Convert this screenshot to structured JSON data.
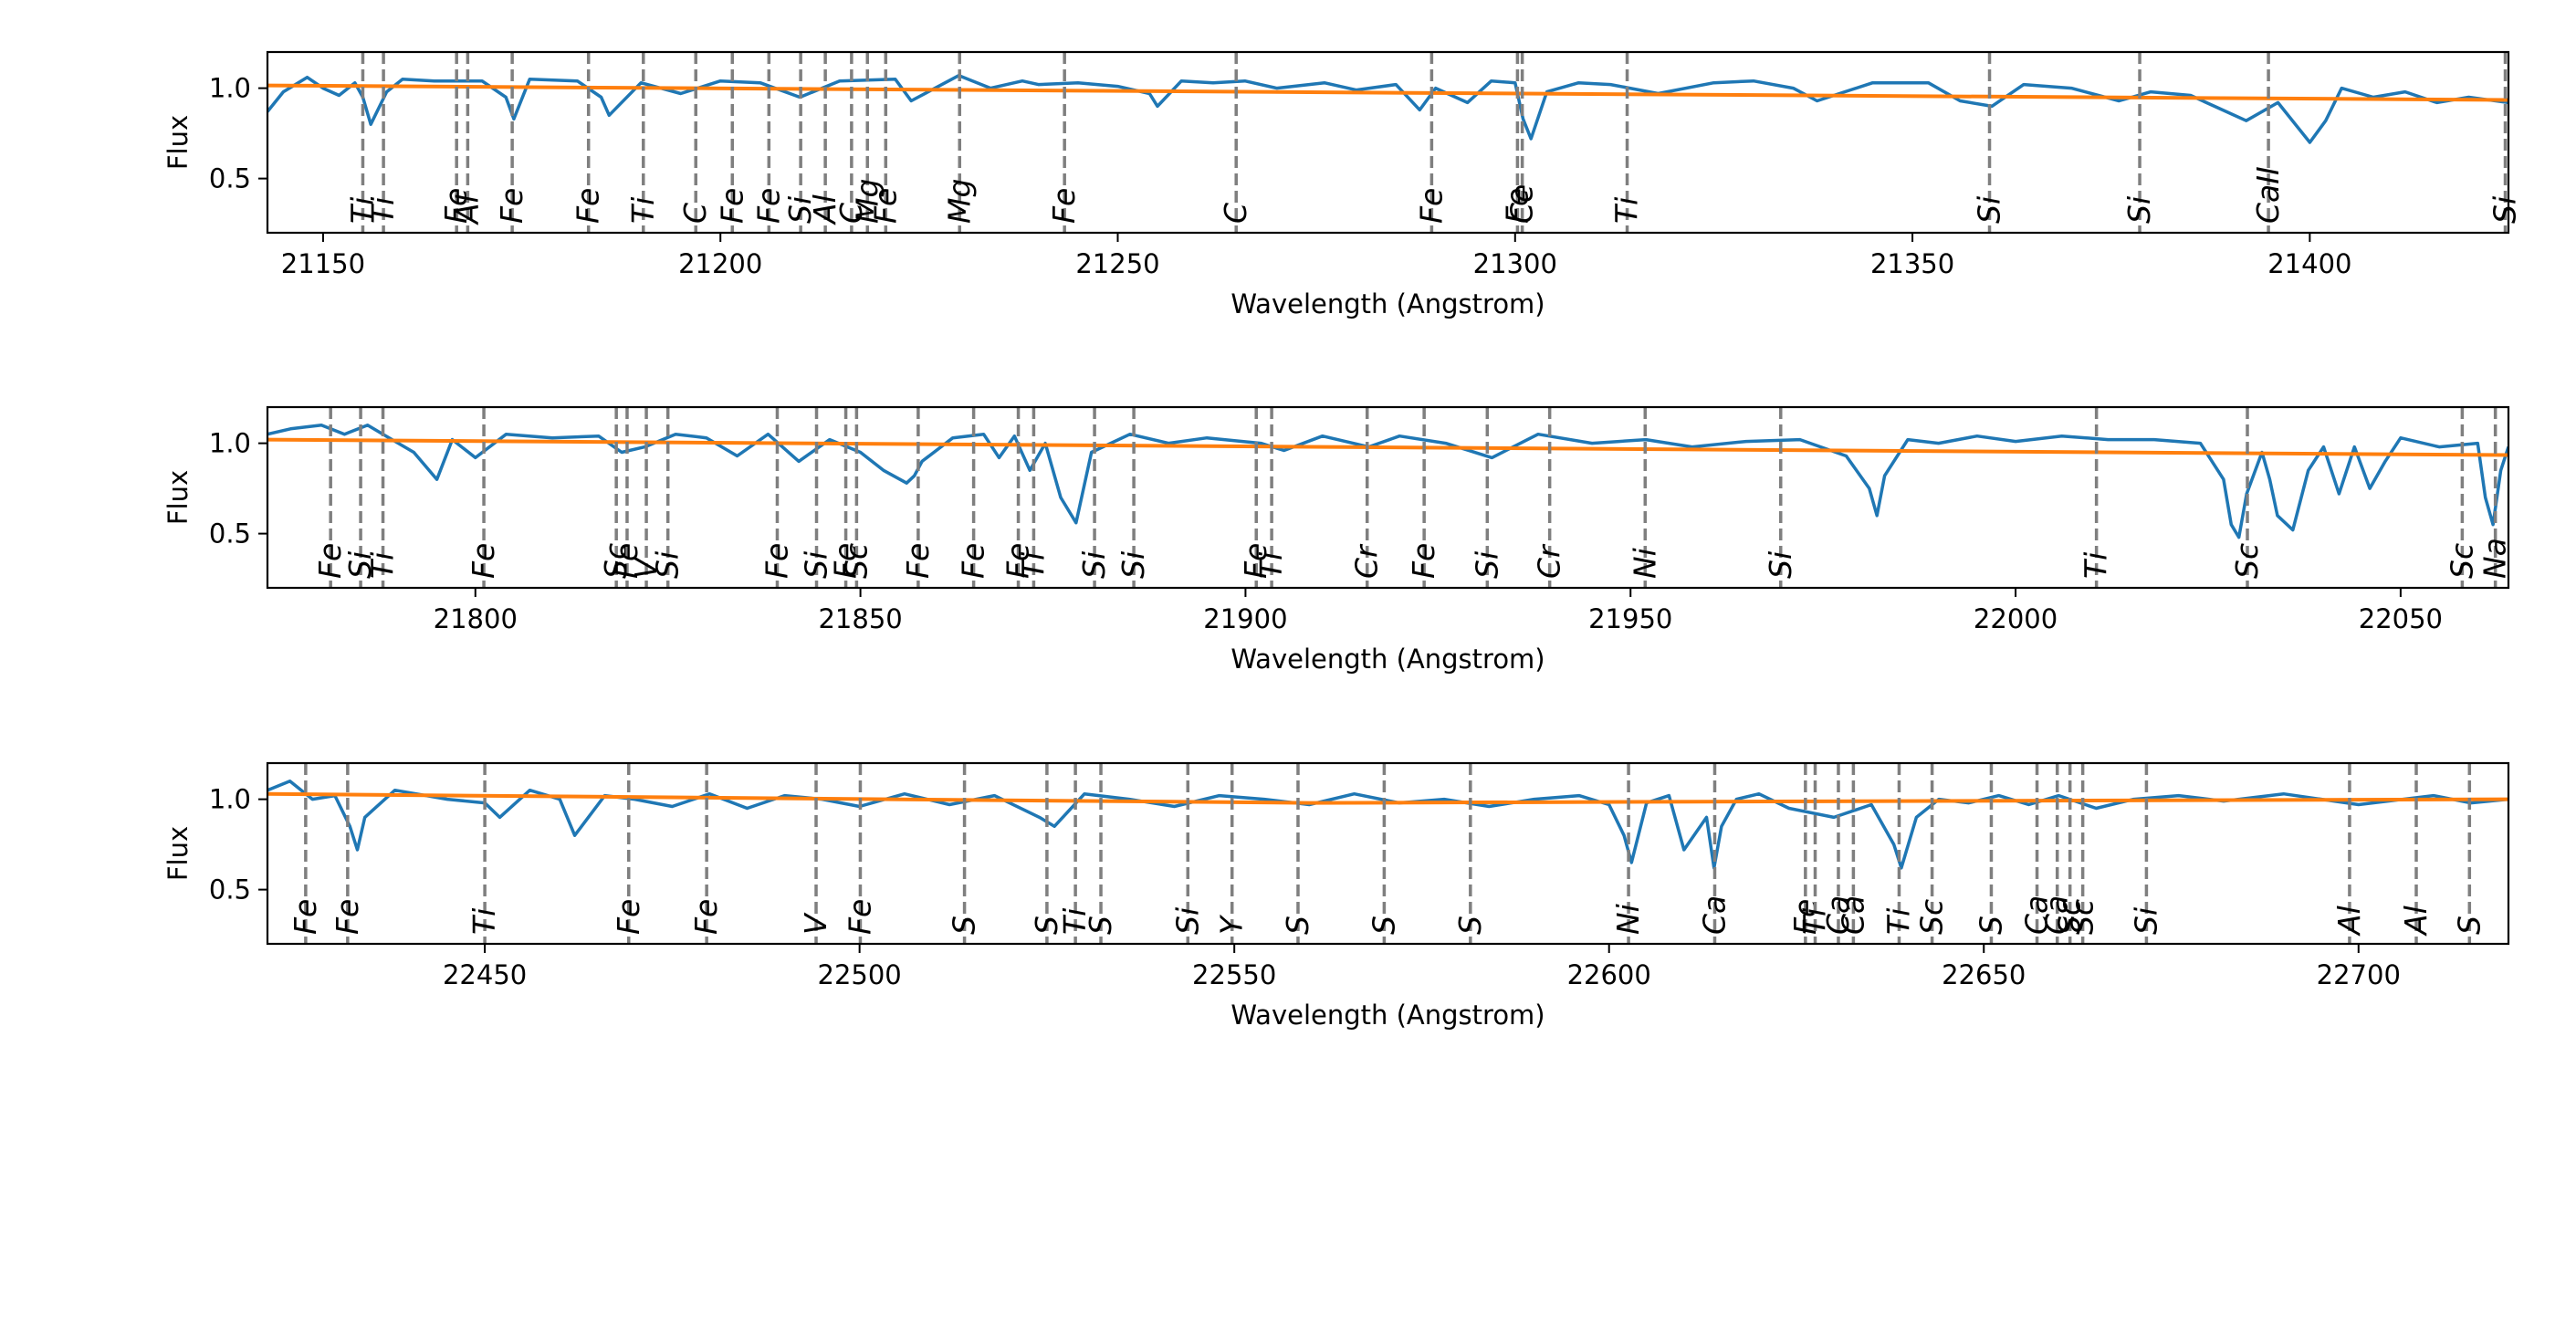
{
  "colors": {
    "spectrum": "#1f77b4",
    "continuum": "#ff7f0e",
    "line_marker": "#7f7f7f",
    "axes": "#000000"
  },
  "chart_data": [
    {
      "type": "line",
      "xlabel": "Wavelength (Angstrom)",
      "ylabel": "Flux",
      "xlim": [
        21143,
        21425
      ],
      "ylim": [
        0.2,
        1.2
      ],
      "xticks": [
        21150,
        21200,
        21250,
        21300,
        21350,
        21400
      ],
      "yticks": [
        0.5,
        1.0
      ],
      "series": [
        {
          "role": "spectrum",
          "x": [
            21143,
            21145,
            21148,
            21150,
            21152,
            21154,
            21155,
            21156,
            21158,
            21160,
            21164,
            21170,
            21173,
            21174,
            21176,
            21182,
            21185,
            21186,
            21190,
            21195,
            21200,
            21205,
            21210,
            21215,
            21222,
            21224,
            21230,
            21234,
            21238,
            21240,
            21245,
            21250,
            21254,
            21255,
            21258,
            21262,
            21266,
            21270,
            21276,
            21280,
            21285,
            21288,
            21290,
            21294,
            21297,
            21300,
            21301,
            21302,
            21304,
            21308,
            21312,
            21318,
            21325,
            21330,
            21335,
            21338,
            21345,
            21352,
            21356,
            21360,
            21364,
            21370,
            21376,
            21380,
            21385,
            21388,
            21392,
            21396,
            21400,
            21402,
            21404,
            21408,
            21412,
            21416,
            21420,
            21425
          ],
          "y": [
            0.87,
            0.98,
            1.06,
            1.0,
            0.96,
            1.03,
            0.95,
            0.8,
            0.98,
            1.05,
            1.04,
            1.04,
            0.95,
            0.83,
            1.05,
            1.04,
            0.95,
            0.85,
            1.03,
            0.97,
            1.04,
            1.03,
            0.95,
            1.04,
            1.05,
            0.93,
            1.07,
            1.0,
            1.04,
            1.02,
            1.03,
            1.01,
            0.97,
            0.9,
            1.04,
            1.03,
            1.04,
            1.0,
            1.03,
            0.99,
            1.02,
            0.88,
            1.0,
            0.92,
            1.04,
            1.03,
            0.83,
            0.72,
            0.98,
            1.03,
            1.02,
            0.97,
            1.03,
            1.04,
            1.0,
            0.93,
            1.03,
            1.03,
            0.93,
            0.9,
            1.02,
            1.0,
            0.93,
            0.98,
            0.96,
            0.9,
            0.82,
            0.92,
            0.7,
            0.82,
            1.0,
            0.95,
            0.98,
            0.92,
            0.95,
            0.92
          ]
        },
        {
          "role": "continuum",
          "x": [
            21143,
            21425
          ],
          "y": [
            1.015,
            0.935
          ]
        }
      ],
      "line_markers": [
        {
          "x": 21155.0,
          "label": "Ti"
        },
        {
          "x": 21157.6,
          "label": "Ti"
        },
        {
          "x": 21166.8,
          "label": "Fe"
        },
        {
          "x": 21168.2,
          "label": "Al"
        },
        {
          "x": 21173.8,
          "label": "Fe"
        },
        {
          "x": 21183.4,
          "label": "Fe"
        },
        {
          "x": 21190.3,
          "label": "Ti"
        },
        {
          "x": 21196.9,
          "label": "C"
        },
        {
          "x": 21201.5,
          "label": "Fe"
        },
        {
          "x": 21206.1,
          "label": "Fe"
        },
        {
          "x": 21210.1,
          "label": "Si"
        },
        {
          "x": 21213.2,
          "label": "Al"
        },
        {
          "x": 21216.5,
          "label": "C"
        },
        {
          "x": 21218.5,
          "label": "Mg"
        },
        {
          "x": 21220.8,
          "label": "Fe"
        },
        {
          "x": 21230.1,
          "label": "Mg"
        },
        {
          "x": 21243.3,
          "label": "Fe"
        },
        {
          "x": 21264.9,
          "label": "C"
        },
        {
          "x": 21289.5,
          "label": "Fe"
        },
        {
          "x": 21300.3,
          "label": "Fe"
        },
        {
          "x": 21300.9,
          "label": "Ce"
        },
        {
          "x": 21314.1,
          "label": "Ti"
        },
        {
          "x": 21359.7,
          "label": "Si"
        },
        {
          "x": 21378.6,
          "label": "Si"
        },
        {
          "x": 21394.8,
          "label": "CaII"
        },
        {
          "x": 21424.6,
          "label": "Si"
        }
      ]
    },
    {
      "type": "line",
      "xlabel": "Wavelength (Angstrom)",
      "ylabel": "Flux",
      "xlim": [
        21773,
        22064
      ],
      "ylim": [
        0.2,
        1.2
      ],
      "xticks": [
        21800,
        21850,
        21900,
        21950,
        22000,
        22050
      ],
      "yticks": [
        0.5,
        1.0
      ],
      "series": [
        {
          "role": "spectrum",
          "x": [
            21773,
            21776,
            21780,
            21783,
            21786,
            21788,
            21792,
            21795,
            21797,
            21800,
            21804,
            21810,
            21816,
            21819,
            21822,
            21826,
            21830,
            21834,
            21838,
            21842,
            21846,
            21850,
            21853,
            21856,
            21857,
            21858,
            21862,
            21866,
            21868,
            21870,
            21872,
            21874,
            21876,
            21878,
            21880,
            21885,
            21890,
            21895,
            21902,
            21905,
            21910,
            21916,
            21920,
            21926,
            21932,
            21938,
            21945,
            21952,
            21958,
            21965,
            21972,
            21978,
            21981,
            21982,
            21983,
            21986,
            21990,
            21995,
            22000,
            22006,
            22012,
            22018,
            22024,
            22027,
            22028,
            22029,
            22030,
            22032,
            22033,
            22034,
            22036,
            22038,
            22040,
            22042,
            22043,
            22044,
            22046,
            22048,
            22050,
            22055,
            22060,
            22061,
            22062,
            22063,
            22064
          ],
          "y": [
            1.05,
            1.08,
            1.1,
            1.05,
            1.1,
            1.05,
            0.95,
            0.8,
            1.02,
            0.92,
            1.05,
            1.03,
            1.04,
            0.95,
            0.98,
            1.05,
            1.03,
            0.93,
            1.05,
            0.9,
            1.02,
            0.95,
            0.85,
            0.78,
            0.82,
            0.9,
            1.03,
            1.05,
            0.92,
            1.04,
            0.85,
            1.0,
            0.7,
            0.56,
            0.95,
            1.05,
            1.0,
            1.03,
            1.0,
            0.96,
            1.04,
            0.98,
            1.04,
            1.0,
            0.92,
            1.05,
            1.0,
            1.02,
            0.98,
            1.01,
            1.02,
            0.93,
            0.75,
            0.6,
            0.82,
            1.02,
            1.0,
            1.04,
            1.01,
            1.04,
            1.02,
            1.02,
            1.0,
            0.8,
            0.55,
            0.48,
            0.72,
            0.95,
            0.8,
            0.6,
            0.52,
            0.85,
            0.98,
            0.72,
            0.85,
            0.98,
            0.75,
            0.9,
            1.03,
            0.98,
            1.0,
            0.7,
            0.55,
            0.85,
            0.98
          ]
        },
        {
          "role": "continuum",
          "x": [
            21773,
            22064
          ],
          "y": [
            1.02,
            0.935
          ]
        }
      ],
      "line_markers": [
        {
          "x": 21781.2,
          "label": "Fe"
        },
        {
          "x": 21785.1,
          "label": "Si"
        },
        {
          "x": 21788.0,
          "label": "Ti"
        },
        {
          "x": 21801.1,
          "label": "Fe"
        },
        {
          "x": 21818.3,
          "label": "Sc"
        },
        {
          "x": 21819.7,
          "label": "Fe"
        },
        {
          "x": 21822.2,
          "label": "V"
        },
        {
          "x": 21825.0,
          "label": "Si"
        },
        {
          "x": 21839.2,
          "label": "Fe"
        },
        {
          "x": 21844.3,
          "label": "Si"
        },
        {
          "x": 21848.1,
          "label": "Fe"
        },
        {
          "x": 21849.5,
          "label": "Sc"
        },
        {
          "x": 21857.5,
          "label": "Fe"
        },
        {
          "x": 21864.7,
          "label": "Fe"
        },
        {
          "x": 21870.5,
          "label": "Fe"
        },
        {
          "x": 21872.5,
          "label": "Ti"
        },
        {
          "x": 21880.4,
          "label": "Si"
        },
        {
          "x": 21885.5,
          "label": "Si"
        },
        {
          "x": 21901.4,
          "label": "Fe"
        },
        {
          "x": 21903.4,
          "label": "Ti"
        },
        {
          "x": 21915.8,
          "label": "Cr"
        },
        {
          "x": 21923.2,
          "label": "Fe"
        },
        {
          "x": 21931.4,
          "label": "Si"
        },
        {
          "x": 21939.5,
          "label": "Cr"
        },
        {
          "x": 21951.9,
          "label": "Ni"
        },
        {
          "x": 21969.5,
          "label": "Si"
        },
        {
          "x": 22010.5,
          "label": "Ti"
        },
        {
          "x": 22030.1,
          "label": "Sc"
        },
        {
          "x": 22058.0,
          "label": "Sc"
        },
        {
          "x": 22062.3,
          "label": "Na"
        }
      ]
    },
    {
      "type": "line",
      "xlabel": "Wavelength (Angstrom)",
      "ylabel": "Flux",
      "xlim": [
        22421,
        22720
      ],
      "ylim": [
        0.2,
        1.2
      ],
      "xticks": [
        22450,
        22500,
        22550,
        22600,
        22650,
        22700
      ],
      "yticks": [
        0.5,
        1.0
      ],
      "series": [
        {
          "role": "spectrum",
          "x": [
            22421,
            22424,
            22427,
            22430,
            22432,
            22433,
            22434,
            22438,
            22445,
            22450,
            22452,
            22456,
            22460,
            22462,
            22466,
            22470,
            22475,
            22480,
            22485,
            22490,
            22495,
            22500,
            22506,
            22512,
            22518,
            22524,
            22526,
            22530,
            22536,
            22542,
            22548,
            22554,
            22560,
            22566,
            22572,
            22578,
            22584,
            22590,
            22596,
            22600,
            22602,
            22603,
            22605,
            22608,
            22610,
            22613,
            22614,
            22615,
            22617,
            22620,
            22624,
            22630,
            22635,
            22638,
            22639,
            22641,
            22644,
            22648,
            22652,
            22656,
            22660,
            22665,
            22670,
            22676,
            22682,
            22690,
            22700,
            22710,
            22715,
            22720
          ],
          "y": [
            1.05,
            1.1,
            1.0,
            1.02,
            0.85,
            0.72,
            0.9,
            1.05,
            1.0,
            0.98,
            0.9,
            1.05,
            1.0,
            0.8,
            1.02,
            1.0,
            0.96,
            1.03,
            0.95,
            1.02,
            1.0,
            0.96,
            1.03,
            0.97,
            1.02,
            0.9,
            0.85,
            1.03,
            1.0,
            0.96,
            1.02,
            1.0,
            0.97,
            1.03,
            0.98,
            1.0,
            0.96,
            1.0,
            1.02,
            0.97,
            0.8,
            0.65,
            0.98,
            1.02,
            0.72,
            0.9,
            0.62,
            0.85,
            1.0,
            1.03,
            0.95,
            0.9,
            0.97,
            0.75,
            0.62,
            0.9,
            1.0,
            0.98,
            1.02,
            0.97,
            1.02,
            0.95,
            1.0,
            1.02,
            0.99,
            1.03,
            0.97,
            1.02,
            0.98,
            1.0
          ]
        },
        {
          "role": "continuum",
          "x": [
            22421,
            22560,
            22720
          ],
          "y": [
            1.03,
            0.98,
            1.0
          ]
        }
      ],
      "line_markers": [
        {
          "x": 22426.1,
          "label": "Fe"
        },
        {
          "x": 22431.7,
          "label": "Fe"
        },
        {
          "x": 22450.0,
          "label": "Ti"
        },
        {
          "x": 22469.2,
          "label": "Fe"
        },
        {
          "x": 22479.6,
          "label": "Fe"
        },
        {
          "x": 22494.2,
          "label": "V"
        },
        {
          "x": 22500.1,
          "label": "Fe"
        },
        {
          "x": 22514.0,
          "label": "S"
        },
        {
          "x": 22525.0,
          "label": "S"
        },
        {
          "x": 22528.8,
          "label": "Ti"
        },
        {
          "x": 22532.2,
          "label": "S"
        },
        {
          "x": 22543.8,
          "label": "Si"
        },
        {
          "x": 22549.7,
          "label": "Y"
        },
        {
          "x": 22558.5,
          "label": "S"
        },
        {
          "x": 22570.0,
          "label": "S"
        },
        {
          "x": 22581.5,
          "label": "S"
        },
        {
          "x": 22602.6,
          "label": "Ni"
        },
        {
          "x": 22614.1,
          "label": "Ca"
        },
        {
          "x": 22626.2,
          "label": "Fe"
        },
        {
          "x": 22627.5,
          "label": "Ti"
        },
        {
          "x": 22630.6,
          "label": "Ca"
        },
        {
          "x": 22632.6,
          "label": "Ca"
        },
        {
          "x": 22638.7,
          "label": "Ti"
        },
        {
          "x": 22643.1,
          "label": "Sc"
        },
        {
          "x": 22651.0,
          "label": "S"
        },
        {
          "x": 22657.1,
          "label": "Ca"
        },
        {
          "x": 22659.8,
          "label": "Ca"
        },
        {
          "x": 22661.5,
          "label": "Sc"
        },
        {
          "x": 22663.2,
          "label": "Sc"
        },
        {
          "x": 22671.7,
          "label": "Si"
        },
        {
          "x": 22698.8,
          "label": "Al"
        },
        {
          "x": 22707.7,
          "label": "Al"
        },
        {
          "x": 22714.8,
          "label": "S"
        }
      ]
    }
  ]
}
